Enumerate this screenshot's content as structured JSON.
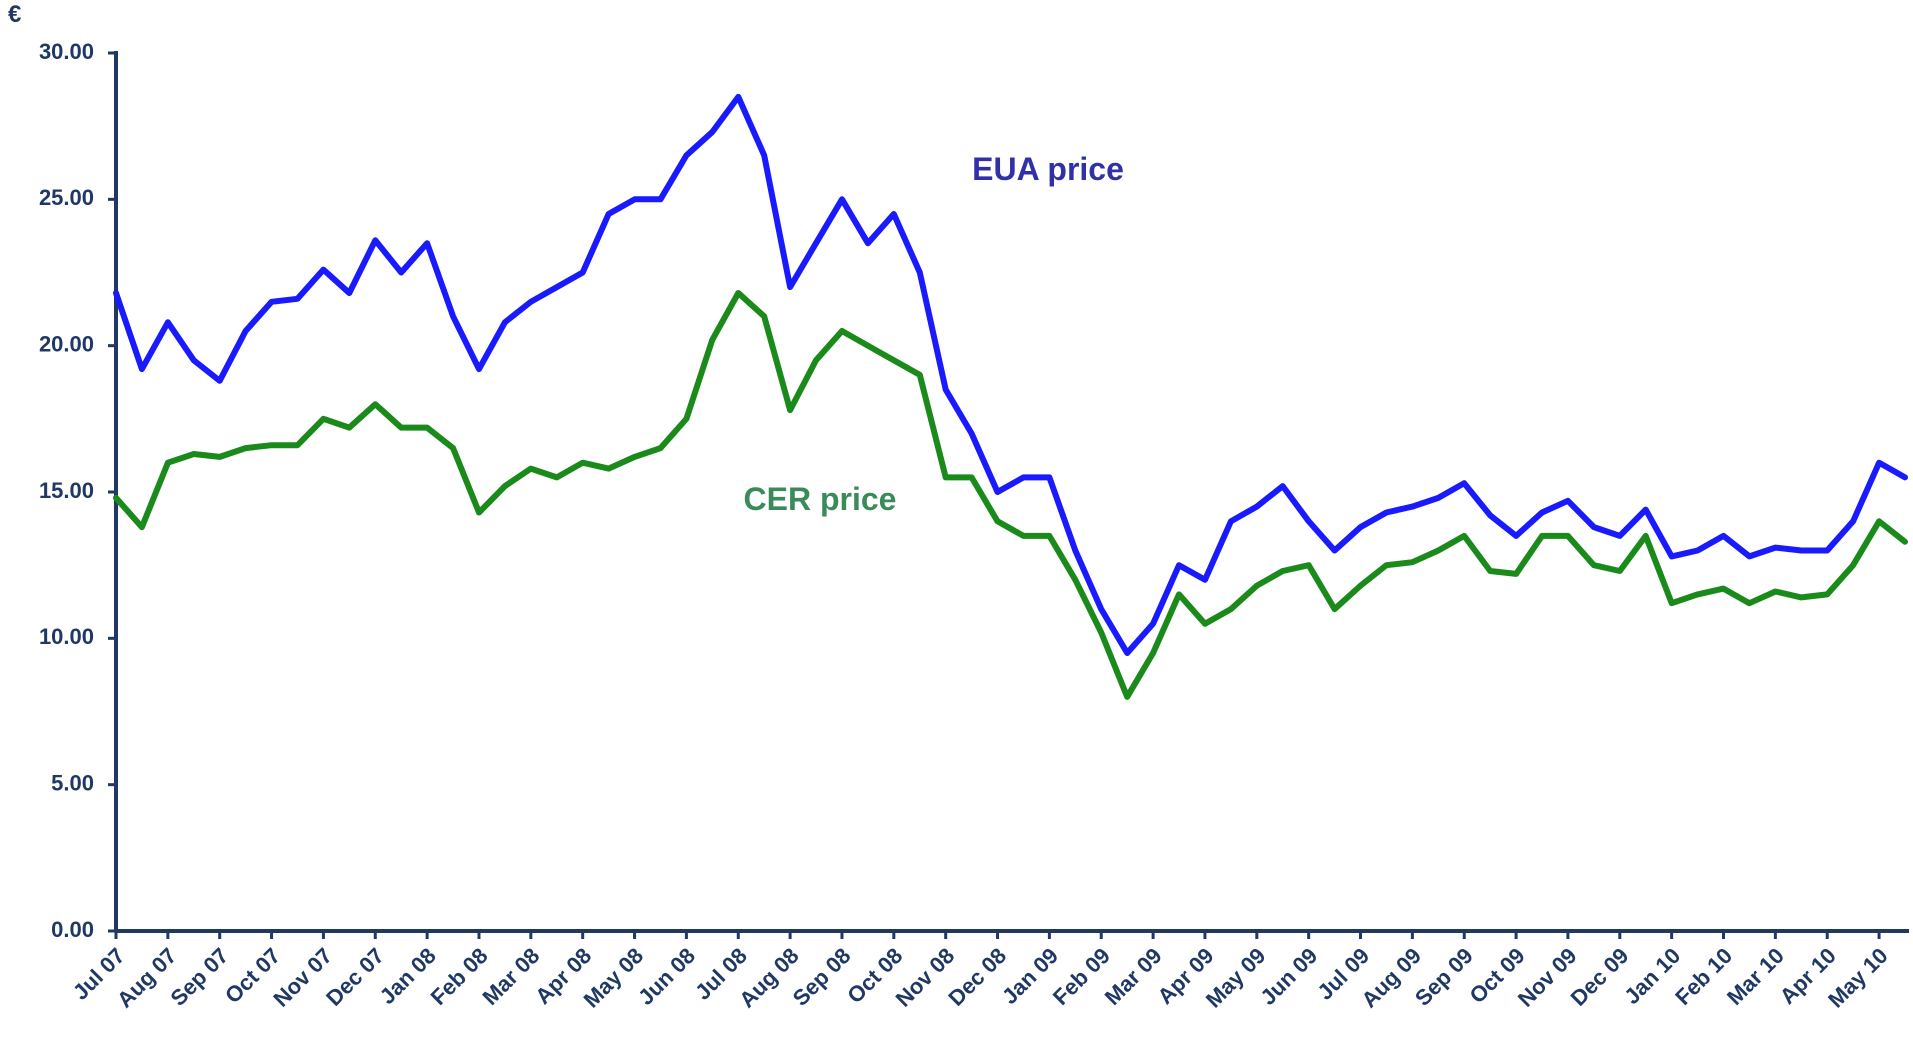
{
  "chart_data": {
    "type": "line",
    "y_label": "€",
    "categories": [
      "Jul 07",
      null,
      "Aug 07",
      null,
      "Sep 07",
      null,
      "Oct 07",
      null,
      "Nov 07",
      null,
      "Dec 07",
      null,
      "Jan 08",
      null,
      "Feb 08",
      null,
      "Mar 08",
      null,
      "Apr 08",
      null,
      "May 08",
      null,
      "Jun 08",
      null,
      "Jul 08",
      null,
      "Aug 08",
      null,
      "Sep 08",
      null,
      "Oct 08",
      null,
      "Nov 08",
      null,
      "Dec 08",
      null,
      "Jan 09",
      null,
      "Feb 09",
      null,
      "Mar 09",
      null,
      "Apr 09",
      null,
      "May 09",
      null,
      "Jun 09",
      null,
      "Jul 09",
      null,
      "Aug 09",
      null,
      "Sep 09",
      null,
      "Oct 09",
      null,
      "Nov 09",
      null,
      "Dec 09",
      null,
      "Jan 10",
      null,
      "Feb 10",
      null,
      "Mar 10",
      null,
      "Apr 10",
      null,
      "May 10",
      null
    ],
    "series": [
      {
        "name": "EUA price",
        "color": "#1a1aff",
        "label_color": "#3030a8",
        "values": [
          21.8,
          19.2,
          20.8,
          19.5,
          18.8,
          20.5,
          21.5,
          21.6,
          22.6,
          21.8,
          23.6,
          22.5,
          23.5,
          21.0,
          19.2,
          20.8,
          21.5,
          22.0,
          22.5,
          24.5,
          25.0,
          25.0,
          26.5,
          27.3,
          28.5,
          26.5,
          22.0,
          23.5,
          25.0,
          23.5,
          24.5,
          22.5,
          18.5,
          17.0,
          15.0,
          15.5,
          15.5,
          13.0,
          11.0,
          9.5,
          10.5,
          12.5,
          12.0,
          14.0,
          14.5,
          15.2,
          14.0,
          13.0,
          13.8,
          14.3,
          14.5,
          14.8,
          15.3,
          14.2,
          13.5,
          14.3,
          14.7,
          13.8,
          13.5,
          14.4,
          12.8,
          13.0,
          13.5,
          12.8,
          13.1,
          13.0,
          13.0,
          14.0,
          16.0,
          15.5
        ]
      },
      {
        "name": "CER price",
        "color": "#1a8a1a",
        "label_color": "#3a8a5a",
        "values": [
          14.8,
          13.8,
          16.0,
          16.3,
          16.2,
          16.5,
          16.6,
          16.6,
          17.5,
          17.2,
          18.0,
          17.2,
          17.2,
          16.5,
          14.3,
          15.2,
          15.8,
          15.5,
          16.0,
          15.8,
          16.2,
          16.5,
          17.5,
          20.2,
          21.8,
          21.0,
          17.8,
          19.5,
          20.5,
          20.0,
          19.5,
          19.0,
          15.5,
          15.5,
          14.0,
          13.5,
          13.5,
          12.0,
          10.2,
          8.0,
          9.5,
          11.5,
          10.5,
          11.0,
          11.8,
          12.3,
          12.5,
          11.0,
          11.8,
          12.5,
          12.6,
          13.0,
          13.5,
          12.3,
          12.2,
          13.5,
          13.5,
          12.5,
          12.3,
          13.5,
          11.2,
          11.5,
          11.7,
          11.2,
          11.6,
          11.4,
          11.5,
          12.5,
          14.0,
          13.3
        ]
      }
    ],
    "ylim": [
      0,
      30
    ],
    "yticks": [
      {
        "value": 0,
        "label": "0.00"
      },
      {
        "value": 5,
        "label": "5.00"
      },
      {
        "value": 10,
        "label": "10.00"
      },
      {
        "value": 15,
        "label": "15.00"
      },
      {
        "value": 20,
        "label": "20.00"
      },
      {
        "value": 25,
        "label": "25.00"
      },
      {
        "value": 30,
        "label": "30.00"
      }
    ],
    "grid": false
  }
}
